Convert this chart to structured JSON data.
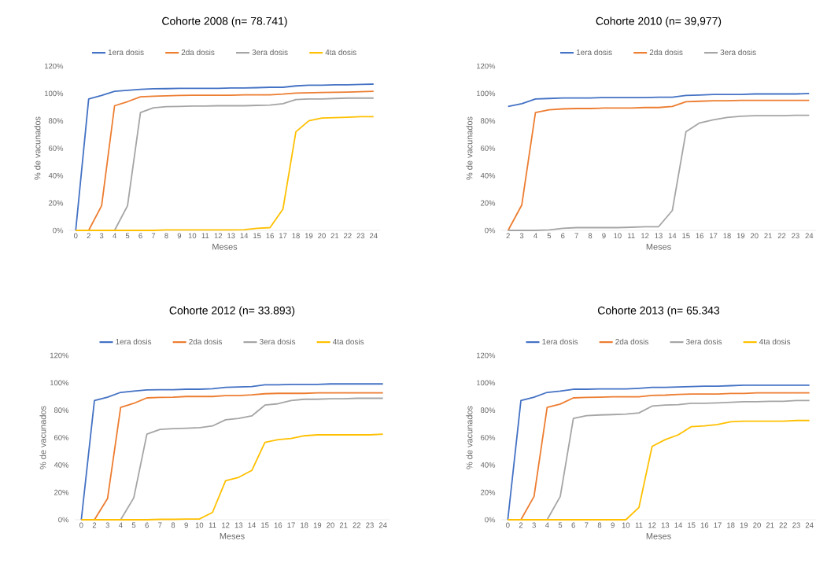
{
  "chart_data": [
    {
      "type": "line",
      "title": "Cohorte 2008 (n= 78.741)",
      "xlabel": "Meses",
      "ylabel": "% de vacunados",
      "legend": "top",
      "grid": false,
      "categories": [
        "0",
        "2",
        "3",
        "4",
        "5",
        "6",
        "7",
        "8",
        "9",
        "10",
        "11",
        "12",
        "13",
        "14",
        "15",
        "16",
        "17",
        "18",
        "19",
        "20",
        "21",
        "22",
        "23",
        "24"
      ],
      "ylim": [
        0,
        120
      ],
      "yticks": [
        {
          "value": 0,
          "label": "0%"
        },
        {
          "value": 20,
          "label": "20%"
        },
        {
          "value": 40,
          "label": "40%"
        },
        {
          "value": 60,
          "label": "60%"
        },
        {
          "value": 80,
          "label": "80%"
        },
        {
          "value": 100,
          "label": "100%"
        },
        {
          "value": 120,
          "label": "120%"
        }
      ],
      "series": [
        {
          "name": "1era dosis",
          "color": "#4472c4",
          "values": [
            0,
            96,
            98.5,
            101.5,
            102.3,
            103,
            103.4,
            103.5,
            103.7,
            103.7,
            103.7,
            103.7,
            104,
            104,
            104.2,
            104.5,
            104.5,
            105.5,
            106,
            106,
            106.3,
            106.3,
            106.6,
            106.8
          ]
        },
        {
          "name": "2da dosis",
          "color": "#ed7d31",
          "values": [
            0,
            0,
            18,
            91,
            94,
            97.5,
            98,
            98.3,
            98.5,
            98.7,
            98.7,
            98.7,
            98.7,
            99,
            99,
            99,
            99.5,
            100.3,
            100.5,
            100.7,
            100.8,
            101,
            101.3,
            101.5
          ]
        },
        {
          "name": "3era dosis",
          "color": "#a5a5a5",
          "values": [
            null,
            null,
            0,
            0,
            18,
            86,
            89.5,
            90.3,
            90.5,
            90.8,
            90.8,
            91,
            91,
            91,
            91.3,
            91.5,
            92.5,
            95.5,
            96,
            96,
            96.3,
            96.6,
            96.6,
            96.6
          ]
        },
        {
          "name": "4ta dosis",
          "color": "#ffc000",
          "values": [
            0,
            0,
            0,
            0,
            0,
            0,
            0,
            0.3,
            0.3,
            0.3,
            0.3,
            0.3,
            0.3,
            0.5,
            1.5,
            2,
            15.5,
            72,
            80,
            82,
            82.3,
            82.6,
            83,
            83
          ]
        }
      ]
    },
    {
      "type": "line",
      "title": "Cohorte 2010 (n= 39,977)",
      "xlabel": "Meses",
      "ylabel": "% de vacunados",
      "legend": "top",
      "grid": false,
      "categories": [
        "2",
        "3",
        "4",
        "5",
        "6",
        "7",
        "8",
        "9",
        "10",
        "11",
        "12",
        "13",
        "14",
        "15",
        "16",
        "17",
        "18",
        "19",
        "20",
        "21",
        "22",
        "23",
        "24"
      ],
      "ylim": [
        0,
        120
      ],
      "yticks": [
        {
          "value": 0,
          "label": "0%"
        },
        {
          "value": 20,
          "label": "20%"
        },
        {
          "value": 40,
          "label": "40%"
        },
        {
          "value": 60,
          "label": "60%"
        },
        {
          "value": 80,
          "label": "80%"
        },
        {
          "value": 100,
          "label": "100%"
        },
        {
          "value": 120,
          "label": "120%"
        }
      ],
      "series": [
        {
          "name": "1era dosis",
          "color": "#4472c4",
          "values": [
            90.5,
            92.5,
            96,
            96.3,
            96.7,
            96.7,
            96.7,
            97,
            97,
            97,
            97,
            97.3,
            97.3,
            98.5,
            98.8,
            99.2,
            99.2,
            99.2,
            99.6,
            99.6,
            99.6,
            99.6,
            100
          ]
        },
        {
          "name": "2da dosis",
          "color": "#ed7d31",
          "values": [
            0,
            18.5,
            86,
            88,
            88.7,
            89,
            89,
            89.3,
            89.3,
            89.3,
            89.7,
            89.7,
            90.5,
            94,
            94.3,
            94.7,
            94.7,
            95,
            95,
            95,
            95,
            95,
            95
          ]
        },
        {
          "name": "3era dosis",
          "color": "#a5a5a5",
          "values": [
            0,
            0,
            0,
            0.3,
            1.5,
            2,
            2,
            2,
            2,
            2.3,
            2.7,
            2.7,
            14.5,
            72,
            78.5,
            80.7,
            82.5,
            83.3,
            83.7,
            83.7,
            83.7,
            84,
            84
          ]
        }
      ]
    },
    {
      "type": "line",
      "title": "Cohorte 2012 (n= 33.893)",
      "xlabel": "Meses",
      "ylabel": "% de vacunados",
      "legend": "top",
      "grid": false,
      "categories": [
        "0",
        "2",
        "3",
        "4",
        "5",
        "6",
        "7",
        "8",
        "9",
        "10",
        "11",
        "12",
        "13",
        "14",
        "15",
        "16",
        "17",
        "18",
        "19",
        "20",
        "21",
        "22",
        "23",
        "24"
      ],
      "ylim": [
        0,
        120
      ],
      "yticks": [
        {
          "value": 0,
          "label": "0%"
        },
        {
          "value": 20,
          "label": "20%"
        },
        {
          "value": 40,
          "label": "40%"
        },
        {
          "value": 60,
          "label": "60%"
        },
        {
          "value": 80,
          "label": "80%"
        },
        {
          "value": 100,
          "label": "100%"
        },
        {
          "value": 120,
          "label": "120%"
        }
      ],
      "series": [
        {
          "name": "1era dosis",
          "color": "#4472c4",
          "values": [
            0,
            87,
            89.5,
            93,
            94,
            94.8,
            95,
            95,
            95.3,
            95.3,
            95.7,
            96.7,
            97,
            97.3,
            98.5,
            98.5,
            98.8,
            98.8,
            98.8,
            99.2,
            99.2,
            99.2,
            99.2,
            99.2
          ]
        },
        {
          "name": "2da dosis",
          "color": "#ed7d31",
          "values": [
            0,
            0,
            15.5,
            82,
            85,
            89,
            89.3,
            89.5,
            90,
            90,
            90,
            90.7,
            90.7,
            91.2,
            92,
            92.3,
            92.3,
            92.3,
            92.7,
            92.7,
            92.7,
            92.7,
            92.7,
            92.7
          ]
        },
        {
          "name": "3era dosis",
          "color": "#a5a5a5",
          "values": [
            0,
            0,
            0,
            0,
            16,
            62.5,
            66,
            66.5,
            66.8,
            67.2,
            68.5,
            73,
            74,
            75.8,
            83.7,
            84.7,
            87,
            88,
            88,
            88.3,
            88.3,
            88.7,
            88.7,
            88.7
          ]
        },
        {
          "name": "4ta dosis",
          "color": "#ffc000",
          "values": [
            0,
            0,
            0,
            0,
            0,
            0,
            0.3,
            0.3,
            0.5,
            0.5,
            5.3,
            28.5,
            31,
            36,
            56.5,
            58.5,
            59.3,
            61.3,
            62,
            62,
            62,
            62,
            62,
            62.5
          ]
        }
      ]
    },
    {
      "type": "line",
      "title": "Cohorte 2013 (n= 65.343",
      "xlabel": "Meses",
      "ylabel": "% de vacunados",
      "legend": "top",
      "grid": false,
      "categories": [
        "0",
        "2",
        "3",
        "4",
        "5",
        "6",
        "7",
        "8",
        "9",
        "10",
        "11",
        "12",
        "13",
        "14",
        "15",
        "16",
        "17",
        "18",
        "19",
        "20",
        "21",
        "22",
        "23",
        "24"
      ],
      "ylim": [
        0,
        120
      ],
      "yticks": [
        {
          "value": 0,
          "label": "0%"
        },
        {
          "value": 20,
          "label": "20%"
        },
        {
          "value": 40,
          "label": "40%"
        },
        {
          "value": 60,
          "label": "60%"
        },
        {
          "value": 80,
          "label": "80%"
        },
        {
          "value": 100,
          "label": "100%"
        },
        {
          "value": 120,
          "label": "120%"
        }
      ],
      "series": [
        {
          "name": "1era dosis",
          "color": "#4472c4",
          "values": [
            0,
            87,
            89.5,
            93,
            94,
            95.3,
            95.3,
            95.5,
            95.5,
            95.5,
            96,
            96.7,
            96.7,
            97,
            97.3,
            97.5,
            97.5,
            97.9,
            98.2,
            98.2,
            98.2,
            98.2,
            98.2,
            98.2
          ]
        },
        {
          "name": "2da dosis",
          "color": "#ed7d31",
          "values": [
            0,
            0,
            17,
            82,
            84.5,
            89,
            89.3,
            89.5,
            89.8,
            89.8,
            89.8,
            90.8,
            91,
            91.5,
            91.8,
            91.8,
            91.8,
            92.2,
            92.2,
            92.7,
            92.7,
            92.7,
            92.7,
            92.7
          ]
        },
        {
          "name": "3era dosis",
          "color": "#a5a5a5",
          "values": [
            0,
            0,
            0,
            0,
            17,
            74,
            76,
            76.5,
            76.8,
            77.2,
            78,
            83,
            83.7,
            84,
            85,
            85,
            85.3,
            85.8,
            86.2,
            86.2,
            86.5,
            86.5,
            87,
            87
          ]
        },
        {
          "name": "4ta dosis",
          "color": "#ffc000",
          "values": [
            0,
            0,
            0,
            0,
            0,
            0,
            0,
            0,
            0,
            0,
            9,
            53.5,
            58.5,
            62,
            68,
            68.5,
            69.5,
            71.5,
            72,
            72,
            72,
            72,
            72.5,
            72.5
          ]
        }
      ]
    }
  ]
}
